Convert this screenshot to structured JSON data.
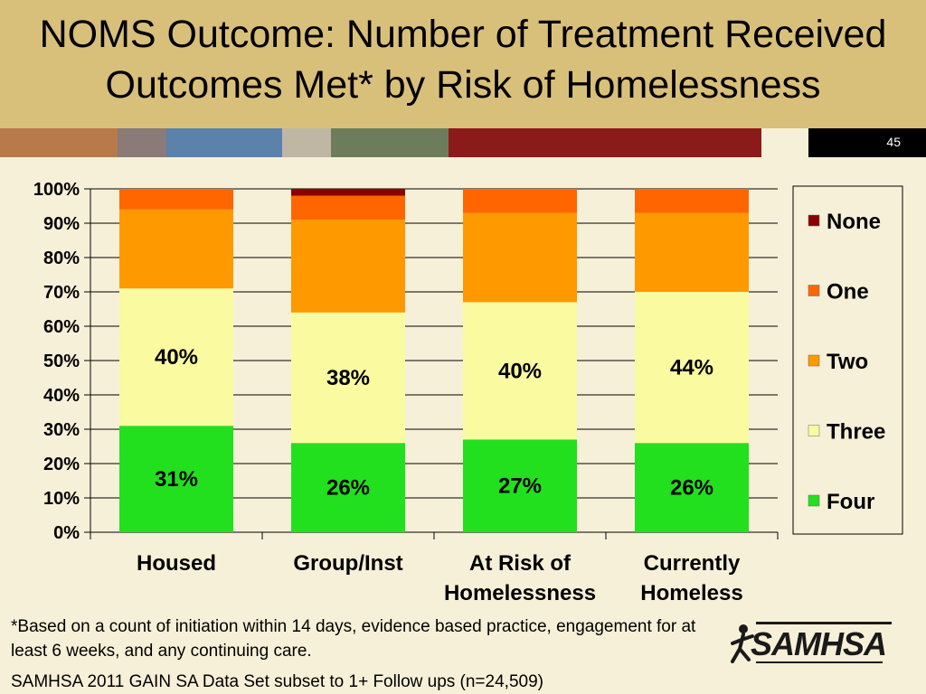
{
  "slide": {
    "title": "NOMS Outcome: Number of Treatment Received\nOutcomes Met* by Risk of Homelessness",
    "number": "45",
    "footnote": "*Based on a count of initiation within 14 days, evidence based practice, engagement for at least 6 weeks, and any continuing care.",
    "source": "SAMHSA 2011 GAIN SA Data Set subset to 1+ Follow ups (n=24,509)",
    "logo_text": "SAMHSA",
    "stripe_colors": [
      "#b87a4b",
      "#8a7a78",
      "#5a82ab",
      "#c0b6a4",
      "#6d7d5c",
      "#8b1a1a",
      "#f7f0d8",
      "#000000"
    ]
  },
  "chart_data": {
    "type": "bar",
    "stacked": true,
    "percent": true,
    "categories": [
      "Housed",
      "Group/Inst",
      "At Risk of\nHomelessness",
      "Currently\nHomeless"
    ],
    "series": [
      {
        "name": "Four",
        "color": "#22e01e",
        "values": [
          31,
          26,
          27,
          26
        ]
      },
      {
        "name": "Three",
        "color": "#fafaa0",
        "values": [
          40,
          38,
          40,
          44
        ]
      },
      {
        "name": "Two",
        "color": "#ff9900",
        "values": [
          23,
          27,
          26,
          23
        ]
      },
      {
        "name": "One",
        "color": "#ff6600",
        "values": [
          6,
          7,
          7,
          7
        ]
      },
      {
        "name": "None",
        "color": "#8b0000",
        "values": [
          0,
          2,
          0,
          0
        ]
      }
    ],
    "data_labels": {
      "Four": [
        "31%",
        "26%",
        "27%",
        "26%"
      ],
      "Three": [
        "40%",
        "38%",
        "40%",
        "44%"
      ]
    },
    "ylim": [
      0,
      100
    ],
    "yticks": [
      "0%",
      "10%",
      "20%",
      "30%",
      "40%",
      "50%",
      "60%",
      "70%",
      "80%",
      "90%",
      "100%"
    ],
    "legend_position": "right",
    "legend_order": [
      "None",
      "One",
      "Two",
      "Three",
      "Four"
    ]
  }
}
